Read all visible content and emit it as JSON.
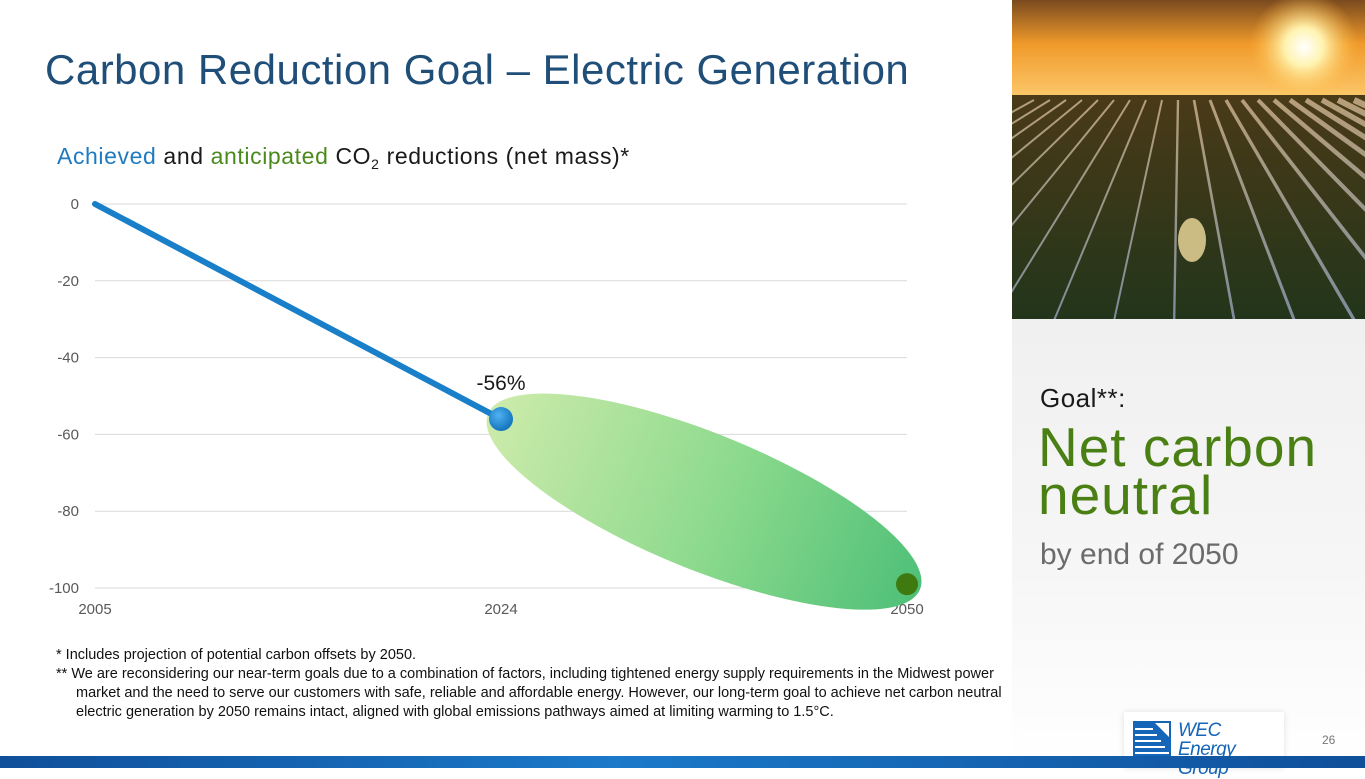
{
  "title": "Carbon Reduction Goal – Electric Generation",
  "subtitle": {
    "achieved": "Achieved",
    "and": "and",
    "anticipated": "anticipated",
    "co2_prefix": "CO",
    "co2_sub": "2",
    "rest": "reductions (net mass)*"
  },
  "chart_data": {
    "type": "line",
    "title": "Achieved and anticipated CO2 reductions (net mass)*",
    "categories": [
      "2005",
      "2024",
      "2050"
    ],
    "x_positions": [
      0,
      1,
      2
    ],
    "series": [
      {
        "name": "Achieved",
        "x": [
          "2005",
          "2024"
        ],
        "values": [
          0,
          -56
        ],
        "color": "#1a7fc9"
      },
      {
        "name": "Anticipated",
        "x": [
          "2024",
          "2050"
        ],
        "values": [
          -56,
          -99
        ],
        "color": "#4fc078"
      }
    ],
    "yticks": [
      0,
      -20,
      -40,
      -60,
      -80,
      -100
    ],
    "ylim": [
      -100,
      0
    ],
    "grid": true,
    "annotations": [
      {
        "x": "2024",
        "y": -56,
        "text": "-56%"
      }
    ],
    "xlabel": "",
    "ylabel": ""
  },
  "footnotes": {
    "note1": "* Includes projection of potential carbon offsets by 2050.",
    "note2": "** We are reconsidering our near-term goals due to a combination of factors, including tightened energy supply requirements in the Midwest power market and the need to serve our customers with safe, reliable and affordable energy. However, our long-term goal to achieve net carbon neutral electric generation by 2050 remains intact, aligned with global emissions pathways aimed at limiting warming to 1.5°C."
  },
  "goal": {
    "label": "Goal**:",
    "main": "Net carbon neutral",
    "sub": "by end of 2050"
  },
  "logo": {
    "line1": "WEC",
    "line2": "Energy Group"
  },
  "page_number": "26",
  "colors": {
    "title": "#1f4e79",
    "achieved": "#1a7fc9",
    "anticipated": "#4a8a1c",
    "goal_green": "#4a7f14",
    "brand_blue": "#1565b8"
  }
}
